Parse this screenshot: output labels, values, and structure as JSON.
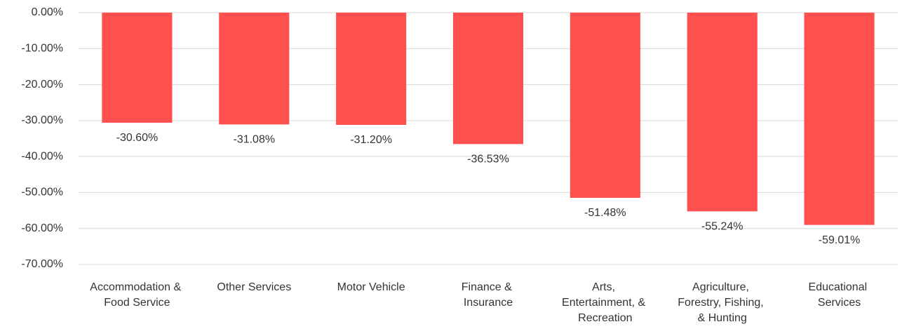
{
  "chart_data": {
    "type": "bar",
    "categories": [
      "Accommodation & Food Service",
      "Other Services",
      "Motor Vehicle",
      "Finance & Insurance",
      "Arts, Entertainment, & Recreation",
      "Agriculture, Forestry, Fishing, & Hunting",
      "Educational Services"
    ],
    "values": [
      -30.6,
      -31.08,
      -31.2,
      -36.53,
      -51.48,
      -55.24,
      -59.01
    ],
    "value_labels": [
      "-30.60%",
      "-31.08%",
      "-31.20%",
      "-36.53%",
      "-51.48%",
      "-55.24%",
      "-59.01%"
    ],
    "color": "#ff5050",
    "ylim": [
      -70,
      0
    ],
    "yticks": [
      {
        "value": 0,
        "label": "0.00%"
      },
      {
        "value": -10,
        "label": "-10.00%"
      },
      {
        "value": -20,
        "label": "-20.00%"
      },
      {
        "value": -30,
        "label": "-30.00%"
      },
      {
        "value": -40,
        "label": "-40.00%"
      },
      {
        "value": -50,
        "label": "-50.00%"
      },
      {
        "value": -60,
        "label": "-60.00%"
      },
      {
        "value": -70,
        "label": "-70.00%"
      }
    ],
    "grid": true
  }
}
